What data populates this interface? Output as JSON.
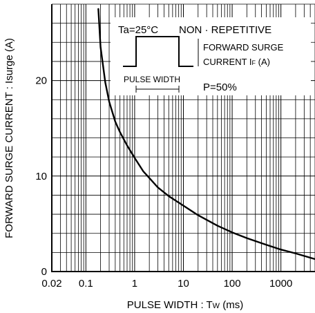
{
  "chart_data": {
    "type": "line",
    "xlabel_main": "PULSE  WIDTH : T",
    "xlabel_sub": "W",
    "xlabel_unit": " (ms)",
    "ylabel": "FORWARD  SURGE  CURRENT : Isurge (A)",
    "x_scale": "log",
    "xlim": [
      0.02,
      5000
    ],
    "ylim": [
      0,
      28
    ],
    "x_ticks": [
      {
        "value": 0.02,
        "label": "0.02"
      },
      {
        "value": 0.1,
        "label": "0.1"
      },
      {
        "value": 1,
        "label": "1"
      },
      {
        "value": 10,
        "label": "10"
      },
      {
        "value": 100,
        "label": "100"
      },
      {
        "value": 1000,
        "label": "1000"
      }
    ],
    "y_ticks": [
      {
        "value": 0,
        "label": "0"
      },
      {
        "value": 10,
        "label": "10"
      },
      {
        "value": 20,
        "label": "20"
      }
    ],
    "grid": true,
    "series": [
      {
        "x": [
          0.18,
          0.2,
          0.25,
          0.3,
          0.4,
          0.5,
          0.7,
          1,
          1.5,
          2,
          3,
          5,
          10,
          20,
          50,
          100,
          200,
          500,
          1000,
          2000,
          5000
        ],
        "y": [
          27.5,
          23.5,
          19.8,
          17.8,
          15.7,
          14.6,
          13.2,
          11.9,
          10.5,
          9.8,
          8.8,
          7.9,
          6.9,
          5.9,
          4.8,
          4.1,
          3.5,
          2.8,
          2.3,
          1.9,
          1.3
        ]
      }
    ],
    "annotations": {
      "condition": "Ta=25°C",
      "mode": "NON · REPETITIVE",
      "current_line1": "FORWARD SURGE",
      "current_line2_main": "CURRENT  I",
      "current_line2_sub": "F",
      "current_line2_unit": "  (A)",
      "pulse_width_label": "PULSE WIDTH",
      "duty": "P=50%"
    }
  }
}
